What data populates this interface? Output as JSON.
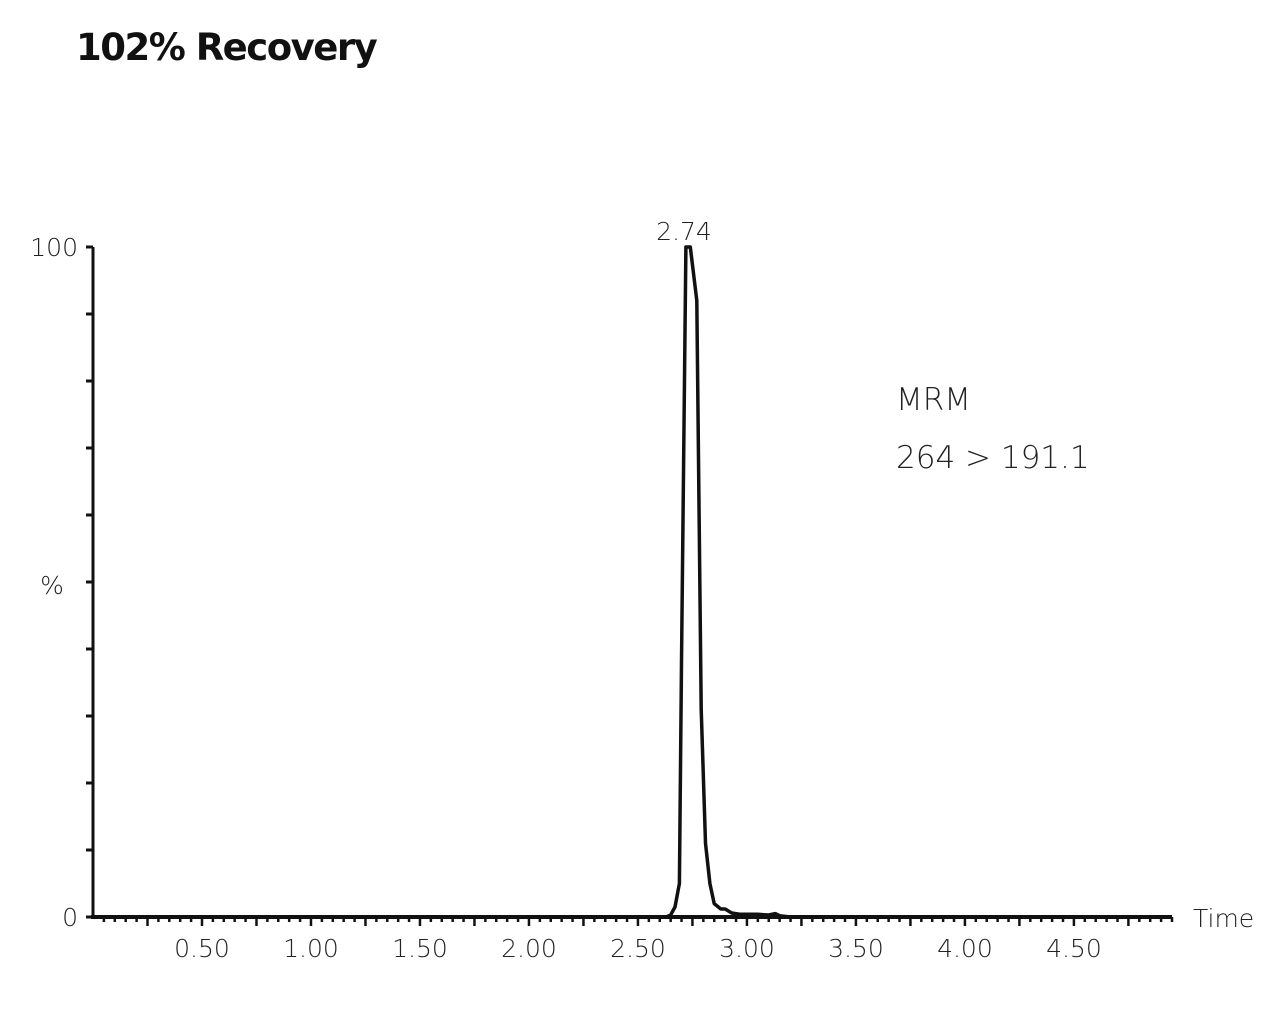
{
  "title": "102% Recovery",
  "chart_data": {
    "type": "line",
    "title": "102% Recovery",
    "xlabel": "Time",
    "ylabel": "%",
    "xlim": [
      0,
      4.95
    ],
    "ylim": [
      0,
      100
    ],
    "x_ticks": [
      "0.50",
      "1.00",
      "1.50",
      "2.00",
      "2.50",
      "3.00",
      "3.50",
      "4.00",
      "4.50"
    ],
    "y_ticks": [
      "0",
      "100"
    ],
    "annotation_lines": [
      "MRM",
      "264 > 191.1"
    ],
    "peak_label": "2.74",
    "series": [
      {
        "x": [
          0.0,
          2.5,
          2.63,
          2.65,
          2.67,
          2.69,
          2.7,
          2.72,
          2.73,
          2.74,
          2.77,
          2.79,
          2.81,
          2.83,
          2.85,
          2.88,
          2.9,
          2.93,
          2.97,
          3.05,
          3.1,
          3.13,
          3.15,
          3.2,
          4.95
        ],
        "y": [
          0,
          0,
          0,
          0.3,
          1.5,
          5,
          38,
          100,
          100,
          100,
          92,
          31,
          11,
          5,
          2,
          1.2,
          1.2,
          0.6,
          0.4,
          0.4,
          0.3,
          0.5,
          0.2,
          0,
          0
        ]
      }
    ],
    "grid": false,
    "legend": "none"
  }
}
